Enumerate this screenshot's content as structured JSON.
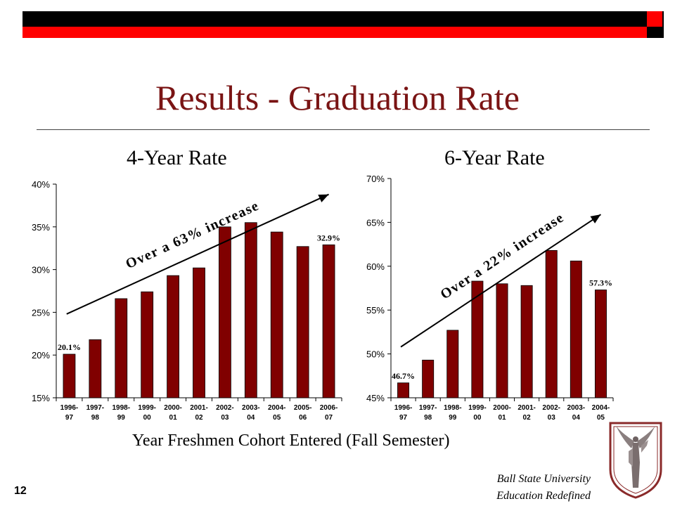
{
  "slide": {
    "title": "Results - Graduation Rate",
    "subtitle_left": "4-Year Rate",
    "subtitle_right": "6-Year Rate",
    "x_caption": "Year Freshmen Cohort Entered (Fall Semester)",
    "page_number": "12",
    "footer_line1": "Ball State University",
    "footer_line2": "Education Redefined",
    "colors": {
      "bar": "#800000",
      "title": "#7a1414",
      "accent_red": "#ff0000",
      "accent_black": "#000000"
    },
    "logo_icon": "ball-state-beneficence-logo-icon"
  },
  "chart_data": [
    {
      "type": "bar",
      "title": "4-Year Rate",
      "xlabel": "Year Freshmen Cohort Entered (Fall Semester)",
      "ylabel": "",
      "ylim": [
        0.15,
        0.4
      ],
      "yticks": [
        0.15,
        0.2,
        0.25,
        0.3,
        0.35,
        0.4
      ],
      "ytick_labels": [
        "15%",
        "20%",
        "25%",
        "30%",
        "35%",
        "40%"
      ],
      "categories": [
        [
          "1996-",
          "97"
        ],
        [
          "1997-",
          "98"
        ],
        [
          "1998-",
          "99"
        ],
        [
          "1999-",
          "00"
        ],
        [
          "2000-",
          "01"
        ],
        [
          "2001-",
          "02"
        ],
        [
          "2002-",
          "03"
        ],
        [
          "2003-",
          "04"
        ],
        [
          "2004-",
          "05"
        ],
        [
          "2005-",
          "06"
        ],
        [
          "2006-",
          "07"
        ]
      ],
      "values": [
        0.201,
        0.218,
        0.266,
        0.274,
        0.293,
        0.302,
        0.35,
        0.355,
        0.344,
        0.327,
        0.329
      ],
      "data_labels": [
        {
          "index": 0,
          "text": "20.1%"
        },
        {
          "index": 10,
          "text": "32.9%"
        }
      ],
      "annotation": {
        "text": "Over a 63% increase",
        "arrow_from": [
          0.4,
          0.248
        ],
        "arrow_to": [
          10.5,
          0.388
        ]
      },
      "grid": false,
      "legend": "none"
    },
    {
      "type": "bar",
      "title": "6-Year Rate",
      "xlabel": "Year Freshmen Cohort Entered (Fall Semester)",
      "ylabel": "",
      "ylim": [
        0.45,
        0.7
      ],
      "yticks": [
        0.45,
        0.5,
        0.55,
        0.6,
        0.65,
        0.7
      ],
      "ytick_labels": [
        "45%",
        "50%",
        "55%",
        "60%",
        "65%",
        "70%"
      ],
      "categories": [
        [
          "1996-",
          "97"
        ],
        [
          "1997-",
          "98"
        ],
        [
          "1998-",
          "99"
        ],
        [
          "1999-",
          "00"
        ],
        [
          "2000-",
          "01"
        ],
        [
          "2001-",
          "02"
        ],
        [
          "2002-",
          "03"
        ],
        [
          "2003-",
          "04"
        ],
        [
          "2004-",
          "05"
        ]
      ],
      "values": [
        0.467,
        0.493,
        0.527,
        0.583,
        0.58,
        0.578,
        0.618,
        0.606,
        0.573
      ],
      "data_labels": [
        {
          "index": 0,
          "text": "46.7%"
        },
        {
          "index": 8,
          "text": "57.3%"
        }
      ],
      "annotation": {
        "text": "Over a 22% increase",
        "arrow_from": [
          0.4,
          0.508
        ],
        "arrow_to": [
          8.5,
          0.659
        ]
      },
      "grid": false,
      "legend": "none"
    }
  ]
}
